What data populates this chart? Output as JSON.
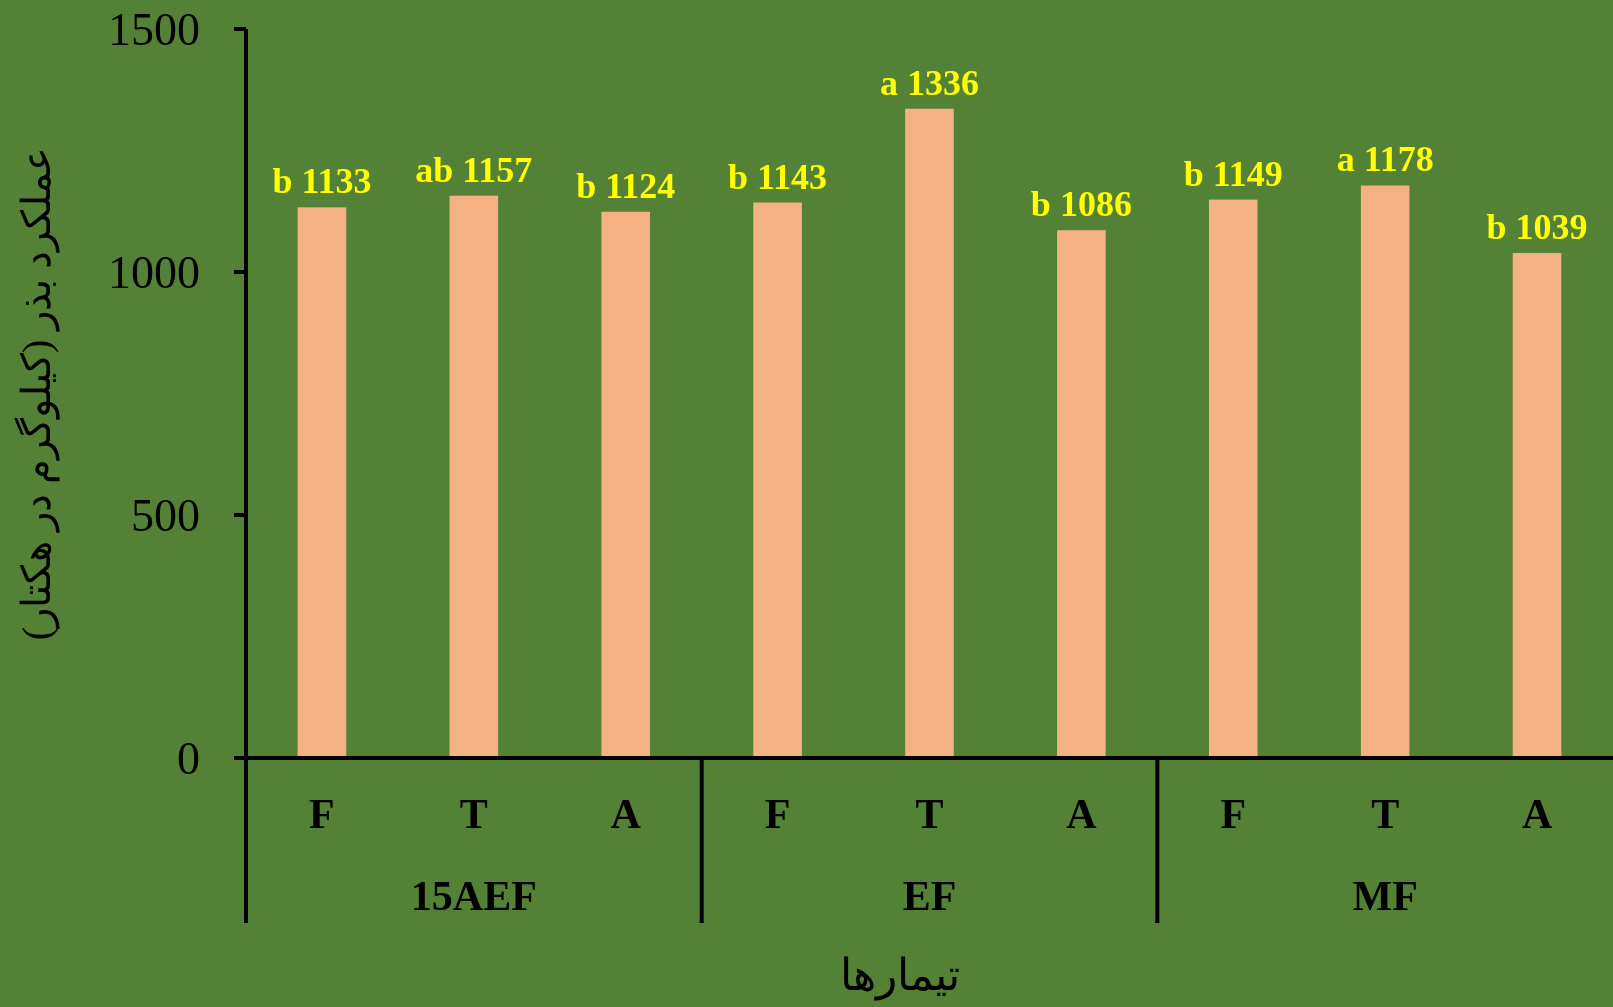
{
  "chart_data": {
    "type": "bar",
    "xlabel": "تیمارها",
    "ylabel": "عملکرد بذر (کیلوگرم در هکتار)",
    "categories": [
      "F",
      "T",
      "A",
      "F",
      "T",
      "A",
      "F",
      "T",
      "A"
    ],
    "values": [
      1133,
      1157,
      1124,
      1143,
      1336,
      1086,
      1149,
      1178,
      1039
    ],
    "value_labels": [
      "b 1133",
      "ab 1157",
      "b 1124",
      "b 1143",
      "a 1336",
      "b 1086",
      "b 1149",
      "a 1178",
      "b 1039"
    ],
    "color": "#f4b183",
    "ylim": [
      0,
      1500
    ],
    "yticks": [
      0,
      500,
      1000,
      1500
    ],
    "grid": false,
    "annotations": [
      "15AEF",
      "EF",
      "MF"
    ]
  }
}
